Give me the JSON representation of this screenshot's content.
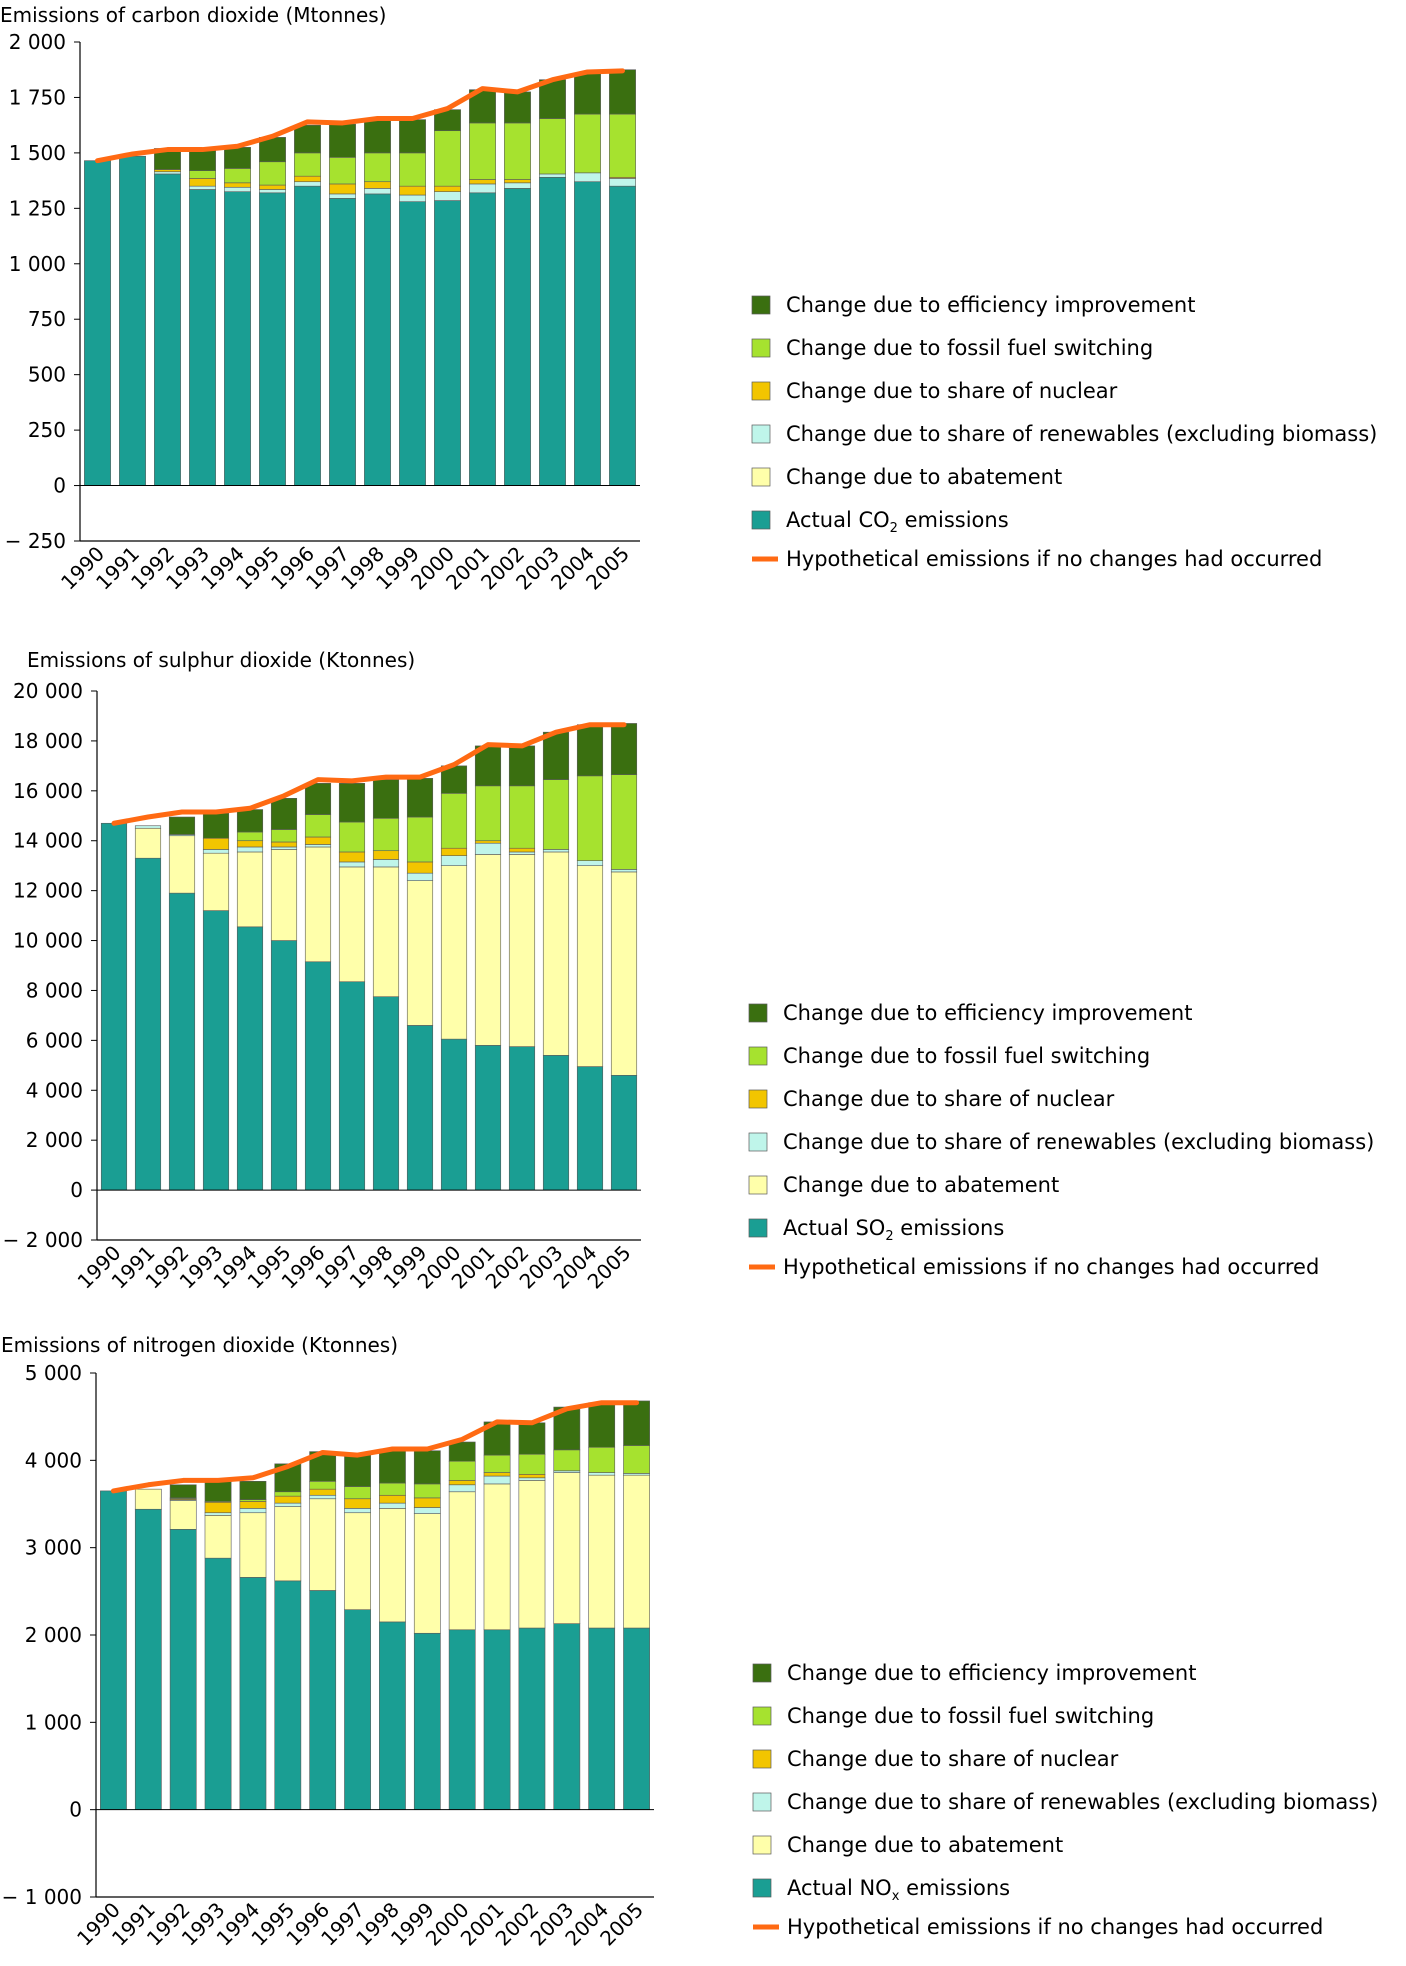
{
  "colors": {
    "efficiency": "#3A6F10",
    "fossil": "#A6E22F",
    "nuclear": "#F2C500",
    "renewables": "#BFF5EA",
    "abatement": "#FFFFAA",
    "actual": "#1A9E93",
    "hypothetical": "#FF6A13"
  },
  "chart_data": [
    {
      "type": "bar",
      "stacked": true,
      "title": "Emissions of carbon dioxide (Mtonnes)",
      "categories": [
        "1990",
        "1991",
        "1992",
        "1993",
        "1994",
        "1995",
        "1996",
        "1997",
        "1998",
        "1999",
        "2000",
        "2001",
        "2002",
        "2003",
        "2004",
        "2005"
      ],
      "ylim": [
        -250,
        2000
      ],
      "yticks": [
        -250,
        0,
        250,
        500,
        750,
        1000,
        1250,
        1500,
        1750,
        2000
      ],
      "ytick_labels": [
        "− 250",
        "0",
        "250",
        "500",
        "750",
        "1 000",
        "1 250",
        "1 500",
        "1 750",
        "2 000"
      ],
      "legend_position": "right",
      "series": [
        {
          "name": "Actual CO2 emissions",
          "key": "actual",
          "values": [
            1465,
            1485,
            1405,
            1335,
            1325,
            1320,
            1350,
            1295,
            1315,
            1280,
            1285,
            1320,
            1340,
            1390,
            1370,
            1350
          ]
        },
        {
          "name": "Change due to abatement",
          "key": "abatement",
          "values": [
            0,
            0,
            0,
            0,
            0,
            0,
            0,
            0,
            0,
            0,
            0,
            0,
            0,
            0,
            0,
            0
          ]
        },
        {
          "name": "Change due to share of renewables (excluding biomass)",
          "key": "renewables",
          "values": [
            0,
            0,
            10,
            15,
            20,
            15,
            20,
            20,
            25,
            30,
            40,
            40,
            25,
            15,
            40,
            35
          ]
        },
        {
          "name": "Change due to share of nuclear",
          "key": "nuclear",
          "values": [
            0,
            0,
            10,
            35,
            20,
            20,
            25,
            45,
            30,
            40,
            25,
            20,
            15,
            0,
            0,
            5
          ]
        },
        {
          "name": "Change due to fossil fuel switching",
          "key": "fossil",
          "values": [
            0,
            0,
            0,
            35,
            65,
            105,
            105,
            120,
            130,
            150,
            250,
            255,
            255,
            250,
            265,
            285
          ]
        },
        {
          "name": "Change due to efficiency improvement",
          "key": "efficiency",
          "values": [
            0,
            0,
            95,
            100,
            95,
            110,
            125,
            150,
            150,
            150,
            95,
            150,
            140,
            175,
            185,
            200
          ]
        }
      ],
      "hypothetical": {
        "name": "Hypothetical emissions if no changes had occurred",
        "values": [
          1465,
          1495,
          1515,
          1515,
          1530,
          1575,
          1640,
          1635,
          1655,
          1655,
          1700,
          1790,
          1775,
          1830,
          1865,
          1870
        ]
      },
      "legend": {
        "efficiency": "Change due to efficiency improvement",
        "fossil": "Change due to fossil fuel switching",
        "nuclear": "Change due to share of nuclear",
        "renewables": "Change due to share of renewables (excluding biomass)",
        "abatement": "Change due to abatement",
        "actual_prefix": "Actual CO",
        "actual_sub": "2",
        "actual_suffix": " emissions",
        "hypothetical": "Hypothetical emissions if no changes had occurred"
      }
    },
    {
      "type": "bar",
      "stacked": true,
      "title": "Emissions of sulphur dioxide (Ktonnes)",
      "categories": [
        "1990",
        "1991",
        "1992",
        "1993",
        "1994",
        "1995",
        "1996",
        "1997",
        "1998",
        "1999",
        "2000",
        "2001",
        "2002",
        "2003",
        "2004",
        "2005"
      ],
      "ylim": [
        -2000,
        20000
      ],
      "yticks": [
        -2000,
        0,
        2000,
        4000,
        6000,
        8000,
        10000,
        12000,
        14000,
        16000,
        18000,
        20000
      ],
      "ytick_labels": [
        "− 2 000",
        "0",
        "2 000",
        "4 000",
        "6 000",
        "8 000",
        "10 000",
        "12 000",
        "14 000",
        "16 000",
        "18 000",
        "20 000"
      ],
      "legend_position": "right",
      "series": [
        {
          "name": "Actual SO2 emissions",
          "key": "actual",
          "values": [
            14700,
            13300,
            11900,
            11200,
            10550,
            10000,
            9150,
            8350,
            7750,
            6600,
            6050,
            5800,
            5750,
            5400,
            4950,
            4600
          ]
        },
        {
          "name": "Change due to abatement",
          "key": "abatement",
          "values": [
            0,
            1200,
            2300,
            2300,
            3000,
            3650,
            4600,
            4600,
            5200,
            5800,
            6950,
            7650,
            7700,
            8150,
            8050,
            8150
          ]
        },
        {
          "name": "Change due to share of renewables (excluding biomass)",
          "key": "renewables",
          "values": [
            0,
            100,
            50,
            150,
            200,
            100,
            100,
            200,
            300,
            300,
            400,
            450,
            100,
            100,
            200,
            100
          ]
        },
        {
          "name": "Change due to share of nuclear",
          "key": "nuclear",
          "values": [
            0,
            0,
            0,
            450,
            250,
            200,
            300,
            400,
            350,
            450,
            300,
            100,
            150,
            0,
            0,
            0
          ]
        },
        {
          "name": "Change due to fossil fuel switching",
          "key": "fossil",
          "values": [
            0,
            0,
            0,
            0,
            350,
            500,
            900,
            1200,
            1300,
            1800,
            2200,
            2200,
            2500,
            2800,
            3400,
            3800
          ]
        },
        {
          "name": "Change due to efficiency improvement",
          "key": "efficiency",
          "values": [
            0,
            0,
            700,
            1000,
            900,
            1250,
            1250,
            1550,
            1550,
            1550,
            1100,
            1600,
            1600,
            1900,
            2050,
            2050
          ]
        }
      ],
      "hypothetical": {
        "name": "Hypothetical emissions if no changes had occurred",
        "values": [
          14700,
          14950,
          15150,
          15150,
          15300,
          15800,
          16450,
          16400,
          16550,
          16550,
          17050,
          17850,
          17800,
          18350,
          18650,
          18650
        ]
      },
      "legend": {
        "efficiency": "Change due to efficiency improvement",
        "fossil": "Change due to fossil fuel switching",
        "nuclear": "Change due to share of nuclear",
        "renewables": "Change due to share of renewables (excluding biomass)",
        "abatement": "Change due to abatement",
        "actual_prefix": "Actual SO",
        "actual_sub": "2",
        "actual_suffix": " emissions",
        "hypothetical": "Hypothetical emissions if no changes had occurred"
      }
    },
    {
      "type": "bar",
      "stacked": true,
      "title": "Emissions of nitrogen dioxide (Ktonnes)",
      "categories": [
        "1990",
        "1991",
        "1992",
        "1993",
        "1994",
        "1995",
        "1996",
        "1997",
        "1998",
        "1999",
        "2000",
        "2001",
        "2002",
        "2003",
        "2004",
        "2005"
      ],
      "ylim": [
        -1000,
        5000
      ],
      "yticks": [
        -1000,
        0,
        1000,
        2000,
        3000,
        4000,
        5000
      ],
      "ytick_labels": [
        "− 1 000",
        "0",
        "1 000",
        "2 000",
        "3 000",
        "4 000",
        "5 000"
      ],
      "legend_position": "right",
      "series": [
        {
          "name": "Actual NOx emissions",
          "key": "actual",
          "values": [
            3650,
            3440,
            3210,
            2880,
            2660,
            2620,
            2510,
            2290,
            2150,
            2020,
            2060,
            2060,
            2080,
            2130,
            2080,
            2080
          ]
        },
        {
          "name": "Change due to abatement",
          "key": "abatement",
          "values": [
            0,
            230,
            330,
            490,
            740,
            850,
            1050,
            1110,
            1300,
            1370,
            1580,
            1670,
            1690,
            1730,
            1750,
            1750
          ]
        },
        {
          "name": "Change due to share of renewables (excluding biomass)",
          "key": "renewables",
          "values": [
            0,
            0,
            10,
            30,
            50,
            40,
            40,
            50,
            60,
            70,
            80,
            90,
            30,
            20,
            30,
            20
          ]
        },
        {
          "name": "Change due to share of nuclear",
          "key": "nuclear",
          "values": [
            0,
            0,
            10,
            120,
            80,
            80,
            70,
            110,
            90,
            110,
            50,
            40,
            40,
            0,
            0,
            0
          ]
        },
        {
          "name": "Change due to fossil fuel switching",
          "key": "fossil",
          "values": [
            0,
            0,
            10,
            10,
            20,
            50,
            90,
            140,
            140,
            160,
            220,
            200,
            230,
            240,
            290,
            320
          ]
        },
        {
          "name": "Change due to efficiency improvement",
          "key": "efficiency",
          "values": [
            0,
            0,
            150,
            250,
            210,
            320,
            340,
            380,
            380,
            380,
            220,
            380,
            360,
            490,
            510,
            510
          ]
        }
      ],
      "hypothetical": {
        "name": "Hypothetical emissions if no changes had occurred",
        "values": [
          3650,
          3720,
          3770,
          3770,
          3800,
          3930,
          4090,
          4060,
          4130,
          4130,
          4240,
          4440,
          4430,
          4590,
          4660,
          4660
        ]
      },
      "legend": {
        "efficiency": "Change due to efficiency improvement",
        "fossil": "Change due to fossil fuel switching",
        "nuclear": "Change due to share of nuclear",
        "renewables": "Change due to share of renewables (excluding biomass)",
        "abatement": "Change due to abatement",
        "actual_prefix": "Actual NO",
        "actual_sub": "x",
        "actual_suffix": " emissions",
        "hypothetical": "Hypothetical emissions if no changes had occurred"
      }
    }
  ]
}
